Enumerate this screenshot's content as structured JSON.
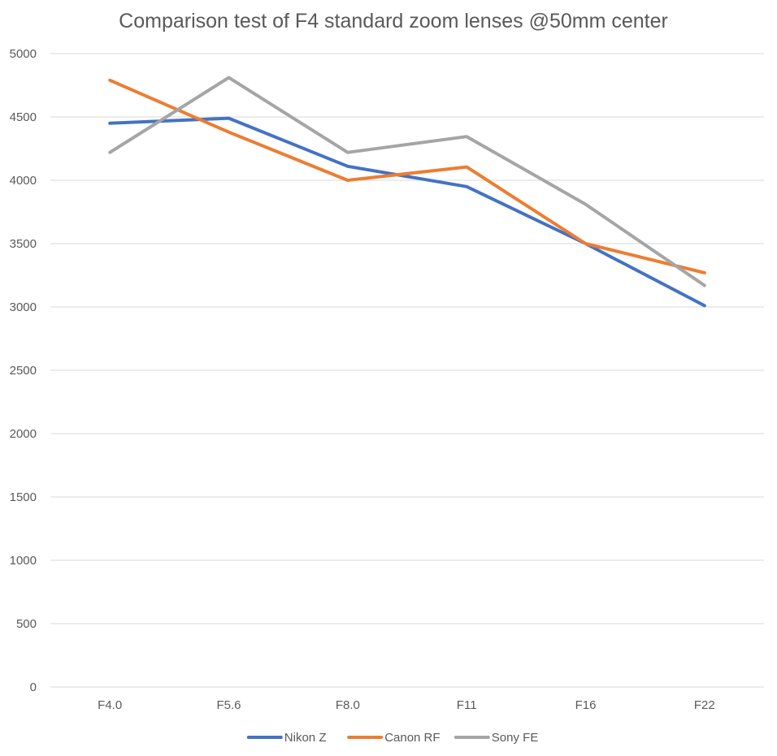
{
  "chart_data": {
    "type": "line",
    "title": "Comparison test of F4 standard zoom lenses @50mm center",
    "xlabel": "",
    "ylabel": "",
    "categories": [
      "F4.0",
      "F5.6",
      "F8.0",
      "F11",
      "F16",
      "F22"
    ],
    "ylim": [
      0,
      5000
    ],
    "yticks": [
      0,
      500,
      1000,
      1500,
      2000,
      2500,
      3000,
      3500,
      4000,
      4500,
      5000
    ],
    "grid": true,
    "legend_position": "bottom",
    "series": [
      {
        "name": "Nikon Z",
        "color": "#4472c4",
        "values": [
          4450,
          4490,
          4110,
          3950,
          3500,
          3010
        ]
      },
      {
        "name": "Canon RF",
        "color": "#ed7d31",
        "values": [
          4790,
          4380,
          4000,
          4105,
          3500,
          3270
        ]
      },
      {
        "name": "Sony FE",
        "color": "#a5a5a5",
        "values": [
          4220,
          4810,
          4220,
          4345,
          3810,
          3170
        ]
      }
    ]
  }
}
